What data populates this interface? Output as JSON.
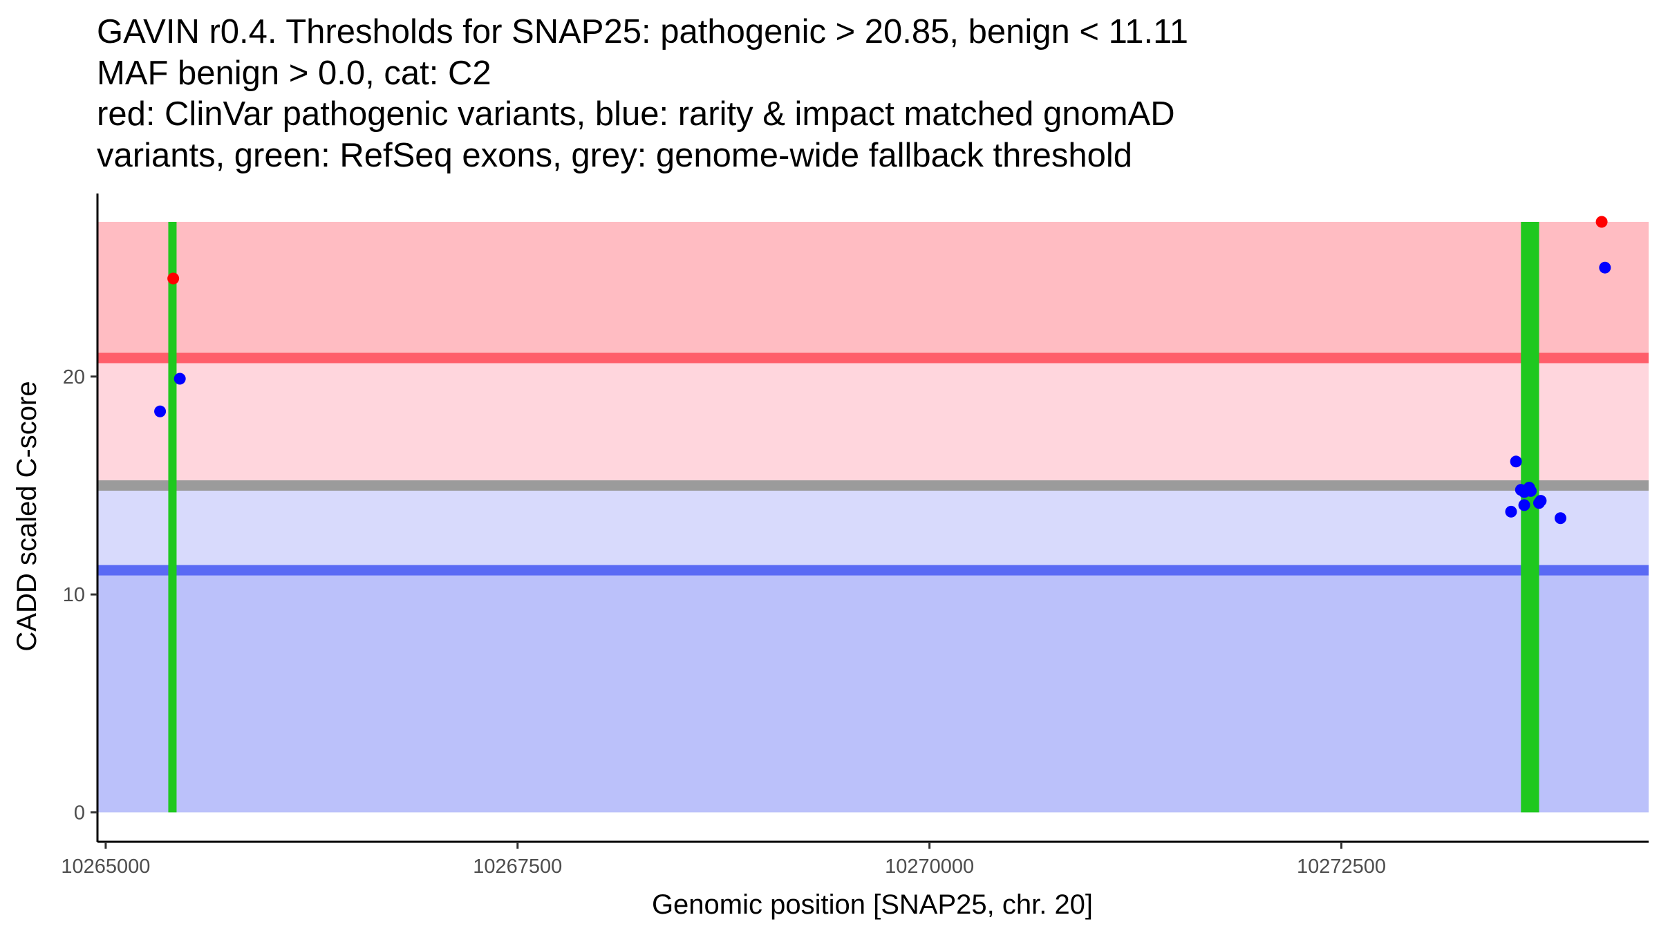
{
  "chart_data": {
    "type": "scatter",
    "title_lines": [
      "GAVIN r0.4. Thresholds for SNAP25: pathogenic > 20.85, benign < 11.11",
      "MAF benign > 0.0, cat: C2",
      "red: ClinVar pathogenic variants, blue: rarity & impact matched gnomAD",
      "variants, green: RefSeq exons, grey: genome-wide fallback threshold"
    ],
    "xlabel": "Genomic position [SNAP25, chr. 20]",
    "ylabel": "CADD scaled C-score",
    "xlim": [
      10264950,
      10274365
    ],
    "ylim": [
      -1.35,
      28.4
    ],
    "x_ticks": [
      10265000,
      10267500,
      10270000,
      10272500
    ],
    "x_tick_labels": [
      "10265000",
      "10267500",
      "10270000",
      "10272500"
    ],
    "y_ticks": [
      0,
      10,
      20
    ],
    "y_tick_labels": [
      "0",
      "10",
      "20"
    ],
    "regions": [
      {
        "name": "benign-zone",
        "y0": 0,
        "y1": 11.11,
        "color": "#bbc1fa"
      },
      {
        "name": "benign-uncertain-zone",
        "y0": 11.11,
        "y1": 15.15,
        "color": "#d8dafc"
      },
      {
        "name": "pathogenic-uncertain-zone",
        "y0": 15.15,
        "y1": 20.85,
        "color": "#ffd6dd"
      },
      {
        "name": "pathogenic-zone",
        "y0": 20.85,
        "y1": 27.1,
        "color": "#ffbcc2"
      }
    ],
    "thresholds": [
      {
        "name": "pathogenic-threshold-line",
        "value": 20.85,
        "color": "#ff5e6a"
      },
      {
        "name": "fallback-threshold-line",
        "value": 15.0,
        "color": "#9b9b9b"
      },
      {
        "name": "benign-threshold-line",
        "value": 11.11,
        "color": "#5a6af4"
      }
    ],
    "exons": [
      {
        "start": 10265380,
        "end": 10265430,
        "color": "#1fc81f"
      },
      {
        "start": 10273590,
        "end": 10273700,
        "color": "#1fc81f"
      }
    ],
    "series": [
      {
        "name": "ClinVar pathogenic variants",
        "color": "#ff0000",
        "points": [
          {
            "x": 10265410,
            "y": 24.5
          },
          {
            "x": 10274080,
            "y": 27.1
          }
        ]
      },
      {
        "name": "gnomAD rarity & impact matched variants",
        "color": "#0000ff",
        "points": [
          {
            "x": 10265330,
            "y": 18.4
          },
          {
            "x": 10265450,
            "y": 19.9
          },
          {
            "x": 10274100,
            "y": 25.0
          },
          {
            "x": 10273560,
            "y": 16.1
          },
          {
            "x": 10273590,
            "y": 14.8
          },
          {
            "x": 10273610,
            "y": 14.7
          },
          {
            "x": 10273640,
            "y": 14.9
          },
          {
            "x": 10273650,
            "y": 14.75
          },
          {
            "x": 10273700,
            "y": 14.2
          },
          {
            "x": 10273710,
            "y": 14.3
          },
          {
            "x": 10273610,
            "y": 14.1
          },
          {
            "x": 10273530,
            "y": 13.8
          },
          {
            "x": 10273830,
            "y": 13.5
          }
        ]
      }
    ]
  }
}
